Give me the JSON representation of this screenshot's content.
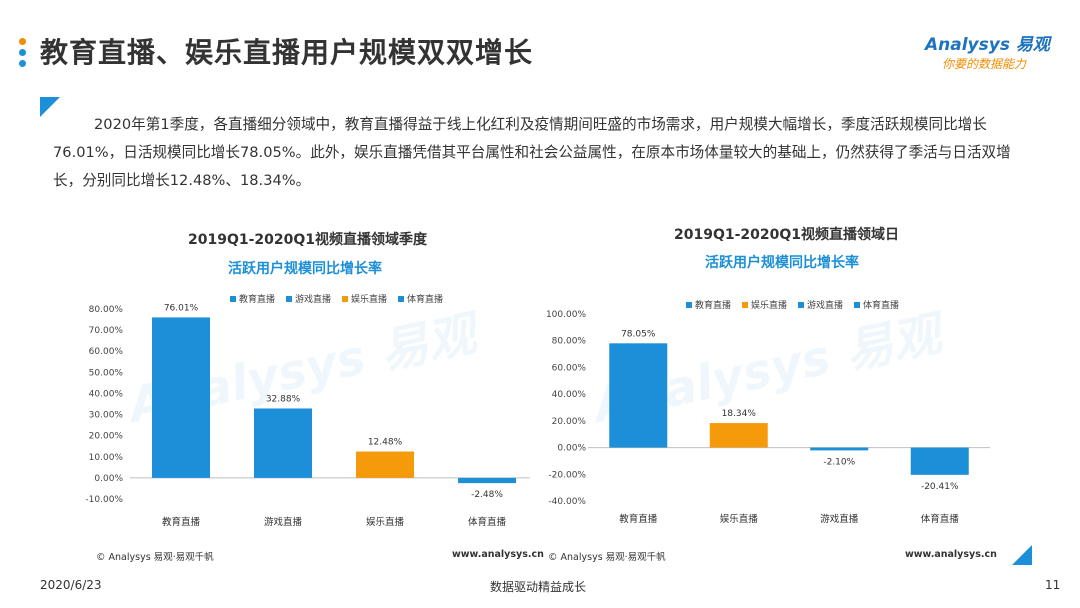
{
  "header": {
    "title": "教育直播、娱乐直播用户规模双双增长",
    "dot_colors": [
      "#f08c00",
      "#1c8fd8",
      "#1c8fd8"
    ]
  },
  "logo": {
    "main": "Analysys 易观",
    "sub": "你要的数据能力"
  },
  "paragraph": "2020年第1季度，各直播细分领域中，教育直播得益于线上化红利及疫情期间旺盛的市场需求，用户规模大幅增长，季度活跃规模同比增长76.01%，日活规模同比增长78.05%。此外，娱乐直播凭借其平台属性和社会公益属性，在原本市场体量较大的基础上，仍然获得了季活与日活双增长，分别同比增长12.48%、18.34%。",
  "colors": {
    "blue": "#1c8fd8",
    "orange": "#f59a0b",
    "accent": "#1c8fd8"
  },
  "chart_data": [
    {
      "type": "bar",
      "title": "2019Q1-2020Q1视频直播领域季度",
      "subtitle": "活跃用户规模同比增长率",
      "categories": [
        "教育直播",
        "游戏直播",
        "娱乐直播",
        "体育直播"
      ],
      "values": [
        76.01,
        32.88,
        12.48,
        -2.48
      ],
      "value_labels": [
        "76.01%",
        "32.88%",
        "12.48%",
        "-2.48%"
      ],
      "bar_colors": [
        "#1c8fd8",
        "#1c8fd8",
        "#f59a0b",
        "#1c8fd8"
      ],
      "legend": [
        {
          "name": "教育直播",
          "color": "#1c8fd8"
        },
        {
          "name": "游戏直播",
          "color": "#1c8fd8"
        },
        {
          "name": "娱乐直播",
          "color": "#f59a0b"
        },
        {
          "name": "体育直播",
          "color": "#1c8fd8"
        }
      ],
      "legend_position": "top",
      "ylim": [
        -10,
        80
      ],
      "yticks": [
        -10,
        0,
        10,
        20,
        30,
        40,
        50,
        60,
        70,
        80
      ],
      "ytick_labels": [
        "-10.00%",
        "0.00%",
        "10.00%",
        "20.00%",
        "30.00%",
        "40.00%",
        "50.00%",
        "60.00%",
        "70.00%",
        "80.00%"
      ],
      "grid": false,
      "source": "© Analysys 易观·易观千帆",
      "site": "www.analysys.cn"
    },
    {
      "type": "bar",
      "title": "2019Q1-2020Q1视频直播领域日",
      "subtitle": "活跃用户规模同比增长率",
      "categories": [
        "教育直播",
        "娱乐直播",
        "游戏直播",
        "体育直播"
      ],
      "values": [
        78.05,
        18.34,
        -2.1,
        -20.41
      ],
      "value_labels": [
        "78.05%",
        "18.34%",
        "-2.10%",
        "-20.41%"
      ],
      "bar_colors": [
        "#1c8fd8",
        "#f59a0b",
        "#1c8fd8",
        "#1c8fd8"
      ],
      "legend": [
        {
          "name": "教育直播",
          "color": "#1c8fd8"
        },
        {
          "name": "娱乐直播",
          "color": "#f59a0b"
        },
        {
          "name": "游戏直播",
          "color": "#1c8fd8"
        },
        {
          "name": "体育直播",
          "color": "#1c8fd8"
        }
      ],
      "legend_position": "top",
      "ylim": [
        -40,
        100
      ],
      "yticks": [
        -40,
        -20,
        0,
        20,
        40,
        60,
        80,
        100
      ],
      "ytick_labels": [
        "-40.00%",
        "-20.00%",
        "0.00%",
        "20.00%",
        "40.00%",
        "60.00%",
        "80.00%",
        "100.00%"
      ],
      "grid": false,
      "source": "© Analysys 易观·易观千帆",
      "site": "www.analysys.cn"
    }
  ],
  "footer": {
    "date": "2020/6/23",
    "slogan": "数据驱动精益成长",
    "page": "11"
  }
}
